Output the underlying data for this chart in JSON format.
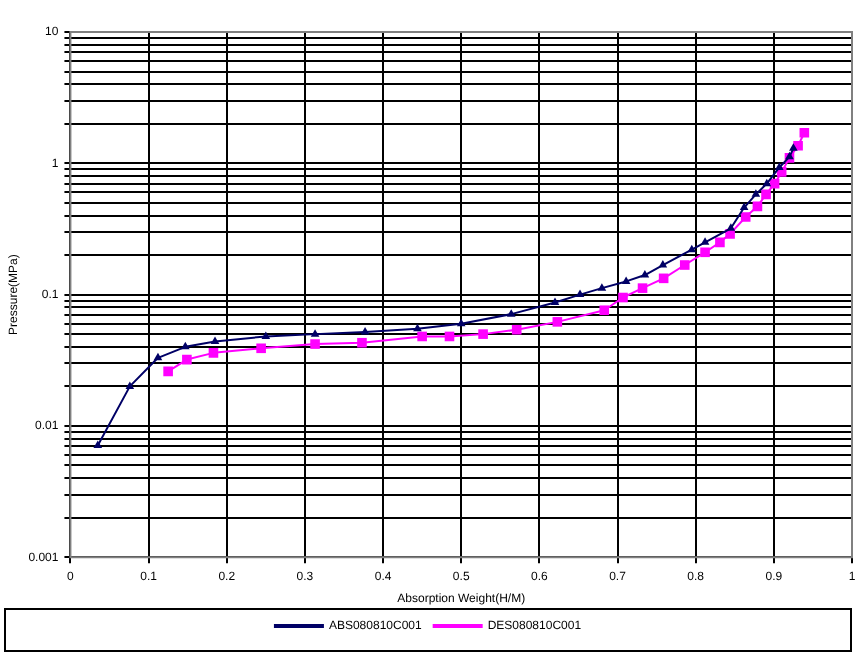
{
  "chart_data": {
    "type": "line",
    "xlabel": "Absorption Weight(H/M)",
    "ylabel": "Pressure(MPa)",
    "log": "y",
    "grid": true,
    "legend": "bottom",
    "xlim": [
      0,
      1
    ],
    "xticks": [
      0,
      0.1,
      0.2,
      0.3,
      0.4,
      0.5,
      0.6,
      0.7,
      0.8,
      0.9,
      1
    ],
    "ylim": [
      0.001,
      10
    ],
    "yticks": [
      0.001,
      {
        "value": 0.002,
        "label": null
      },
      {
        "value": 0.003,
        "label": null
      },
      {
        "value": 0.004,
        "label": null
      },
      {
        "value": 0.005,
        "label": null
      },
      {
        "value": 0.006,
        "label": null
      },
      {
        "value": 0.007,
        "label": null
      },
      {
        "value": 0.008,
        "label": null
      },
      {
        "value": 0.009,
        "label": null
      },
      0.01,
      {
        "value": 0.02,
        "label": null
      },
      {
        "value": 0.03,
        "label": null
      },
      {
        "value": 0.04,
        "label": null
      },
      {
        "value": 0.05,
        "label": null
      },
      {
        "value": 0.06,
        "label": null
      },
      {
        "value": 0.07,
        "label": null
      },
      {
        "value": 0.08,
        "label": null
      },
      {
        "value": 0.09,
        "label": null
      },
      0.1,
      {
        "value": 0.2,
        "label": null
      },
      {
        "value": 0.3,
        "label": null
      },
      {
        "value": 0.4,
        "label": null
      },
      {
        "value": 0.5,
        "label": null
      },
      {
        "value": 0.6,
        "label": null
      },
      {
        "value": 0.7,
        "label": null
      },
      {
        "value": 0.8,
        "label": null
      },
      {
        "value": 0.9,
        "label": null
      },
      1,
      {
        "value": 2,
        "label": null
      },
      {
        "value": 3,
        "label": null
      },
      {
        "value": 4,
        "label": null
      },
      {
        "value": 5,
        "label": null
      },
      {
        "value": 6,
        "label": null
      },
      {
        "value": 7,
        "label": null
      },
      {
        "value": 8,
        "label": null
      },
      {
        "value": 9,
        "label": null
      },
      10
    ],
    "series": [
      {
        "name": "ABS080810C001",
        "color": "#000066",
        "marker": "triangle",
        "x": [
          0.035,
          0.076,
          0.112,
          0.147,
          0.185,
          0.25,
          0.313,
          0.377,
          0.444,
          0.5,
          0.564,
          0.62,
          0.652,
          0.68,
          0.711,
          0.735,
          0.758,
          0.795,
          0.812,
          0.845,
          0.862,
          0.877,
          0.891,
          0.907,
          0.92,
          0.925
        ],
        "values": [
          0.0071,
          0.02,
          0.033,
          0.04,
          0.044,
          0.048,
          0.05,
          0.052,
          0.055,
          0.06,
          0.071,
          0.087,
          0.1,
          0.112,
          0.126,
          0.141,
          0.168,
          0.22,
          0.25,
          0.32,
          0.46,
          0.58,
          0.7,
          0.93,
          1.12,
          1.3
        ]
      },
      {
        "name": "DES080810C001",
        "color": "#ff00ff",
        "marker": "square",
        "x": [
          0.125,
          0.149,
          0.183,
          0.244,
          0.313,
          0.373,
          0.45,
          0.485,
          0.528,
          0.571,
          0.623,
          0.683,
          0.707,
          0.732,
          0.759,
          0.786,
          0.812,
          0.831,
          0.844,
          0.864,
          0.879,
          0.89,
          0.901,
          0.91,
          0.92,
          0.931,
          0.939
        ],
        "values": [
          0.026,
          0.032,
          0.036,
          0.039,
          0.042,
          0.043,
          0.048,
          0.048,
          0.05,
          0.054,
          0.062,
          0.076,
          0.095,
          0.112,
          0.133,
          0.168,
          0.21,
          0.25,
          0.29,
          0.39,
          0.47,
          0.58,
          0.7,
          0.86,
          1.1,
          1.36,
          1.71
        ]
      }
    ]
  }
}
